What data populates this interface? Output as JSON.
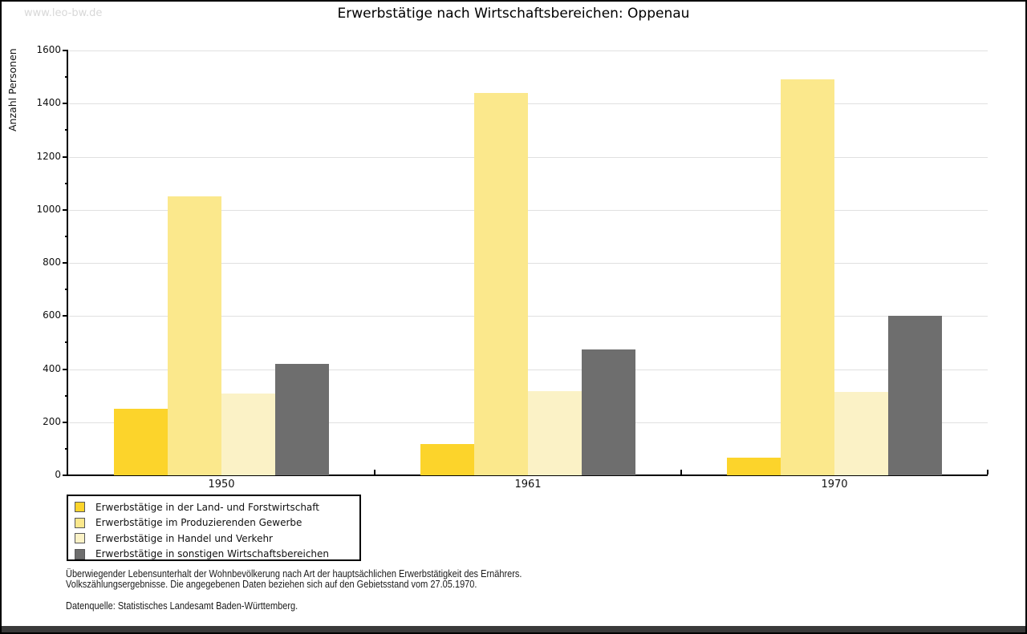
{
  "watermark": "www.leo-bw.de",
  "title": "Erwerbstätige nach Wirtschaftsbereichen: Oppenau",
  "chart_data": {
    "type": "bar",
    "categories": [
      "1950",
      "1961",
      "1970"
    ],
    "series": [
      {
        "name": "Erwerbstätige in der Land- und Forstwirtschaft",
        "color": "#FCD42B",
        "values": [
          250,
          118,
          65
        ]
      },
      {
        "name": "Erwerbstätige im Produzierenden Gewerbe",
        "color": "#FBE88C",
        "values": [
          1052,
          1441,
          1492
        ]
      },
      {
        "name": "Erwerbstätige in Handel und Verkehr",
        "color": "#FBF2C6",
        "values": [
          307,
          316,
          314
        ]
      },
      {
        "name": "Erwerbstätige in sonstigen Wirtschaftsbereichen",
        "color": "#6E6E6E",
        "values": [
          419,
          473,
          600
        ]
      }
    ],
    "ylabel": "Anzahl Personen",
    "ylim": [
      0,
      1600
    ],
    "ytick_step": 200,
    "yminor_step": 100,
    "grid": true,
    "legend_position": "bottom-left",
    "grid_color": "#e0e0e0"
  },
  "footer": {
    "line1": "Überwiegender Lebensunterhalt der Wohnbevölkerung nach Art der hauptsächlichen Erwerbstätigkeit des Ernährers.",
    "line2": "Volkszählungsergebnisse. Die angegebenen Daten beziehen sich auf den Gebietsstand vom 27.05.1970.",
    "source": "Datenquelle: Statistisches Landesamt Baden-Württemberg."
  }
}
